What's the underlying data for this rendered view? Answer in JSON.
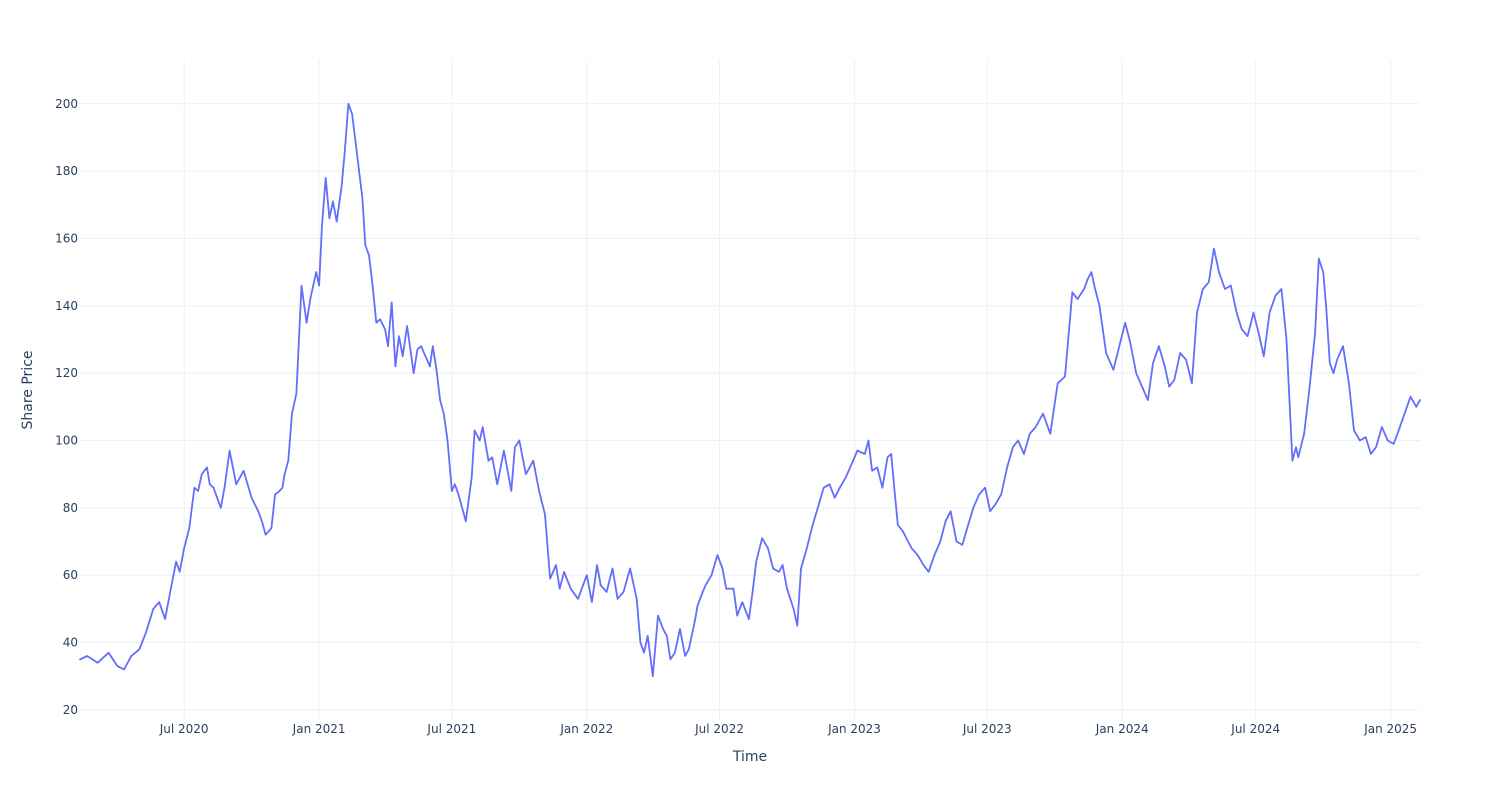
{
  "chart_data": {
    "type": "line",
    "title": "",
    "xlabel": "Time",
    "ylabel": "Share Price",
    "x_axis_type": "date",
    "xlim": [
      "2020-02-10",
      "2025-02-10"
    ],
    "ylim": [
      17,
      213
    ],
    "grid": true,
    "legend": "none",
    "line_color": "#636efa",
    "x_ticks": [
      {
        "date": "2020-07-01",
        "label": "Jul 2020"
      },
      {
        "date": "2021-01-01",
        "label": "Jan 2021"
      },
      {
        "date": "2021-07-01",
        "label": "Jul 2021"
      },
      {
        "date": "2022-01-01",
        "label": "Jan 2022"
      },
      {
        "date": "2022-07-01",
        "label": "Jul 2022"
      },
      {
        "date": "2023-01-01",
        "label": "Jan 2023"
      },
      {
        "date": "2023-07-01",
        "label": "Jul 2023"
      },
      {
        "date": "2024-01-01",
        "label": "Jan 2024"
      },
      {
        "date": "2024-07-01",
        "label": "Jul 2024"
      },
      {
        "date": "2025-01-01",
        "label": "Jan 2025"
      }
    ],
    "y_ticks": [
      20,
      40,
      60,
      80,
      100,
      120,
      140,
      160,
      180,
      200
    ],
    "series": [
      {
        "x": [
          "2020-02-10",
          "2020-02-20",
          "2020-03-05",
          "2020-03-20",
          "2020-04-01",
          "2020-04-10",
          "2020-04-20",
          "2020-05-01",
          "2020-05-10",
          "2020-05-20",
          "2020-05-28",
          "2020-06-05",
          "2020-06-12",
          "2020-06-20",
          "2020-06-25",
          "2020-07-01",
          "2020-07-08",
          "2020-07-15",
          "2020-07-20",
          "2020-07-25",
          "2020-08-01",
          "2020-08-05",
          "2020-08-10",
          "2020-08-20",
          "2020-08-25",
          "2020-09-01",
          "2020-09-10",
          "2020-09-20",
          "2020-10-01",
          "2020-10-10",
          "2020-10-15",
          "2020-10-20",
          "2020-10-28",
          "2020-11-02",
          "2020-11-08",
          "2020-11-12",
          "2020-11-15",
          "2020-11-20",
          "2020-11-25",
          "2020-12-01",
          "2020-12-08",
          "2020-12-15",
          "2020-12-20",
          "2020-12-28",
          "2021-01-01",
          "2021-01-05",
          "2021-01-10",
          "2021-01-15",
          "2021-01-20",
          "2021-01-25",
          "2021-02-01",
          "2021-02-05",
          "2021-02-10",
          "2021-02-15",
          "2021-02-20",
          "2021-03-01",
          "2021-03-05",
          "2021-03-10",
          "2021-03-15",
          "2021-03-20",
          "2021-03-25",
          "2021-04-01",
          "2021-04-05",
          "2021-04-10",
          "2021-04-15",
          "2021-04-20",
          "2021-04-25",
          "2021-05-01",
          "2021-05-10",
          "2021-05-15",
          "2021-05-20",
          "2021-06-01",
          "2021-06-05",
          "2021-06-10",
          "2021-06-15",
          "2021-06-20",
          "2021-06-25",
          "2021-07-01",
          "2021-07-05",
          "2021-07-10",
          "2021-07-20",
          "2021-07-28",
          "2021-08-01",
          "2021-08-08",
          "2021-08-12",
          "2021-08-20",
          "2021-08-25",
          "2021-09-01",
          "2021-09-10",
          "2021-09-20",
          "2021-09-25",
          "2021-10-01",
          "2021-10-10",
          "2021-10-20",
          "2021-10-28",
          "2021-11-05",
          "2021-11-12",
          "2021-11-20",
          "2021-11-25",
          "2021-12-01",
          "2021-12-10",
          "2021-12-20",
          "2022-01-01",
          "2022-01-08",
          "2022-01-15",
          "2022-01-20",
          "2022-01-28",
          "2022-02-05",
          "2022-02-12",
          "2022-02-20",
          "2022-03-01",
          "2022-03-10",
          "2022-03-15",
          "2022-03-20",
          "2022-03-25",
          "2022-04-01",
          "2022-04-08",
          "2022-04-15",
          "2022-04-20",
          "2022-04-25",
          "2022-05-01",
          "2022-05-08",
          "2022-05-15",
          "2022-05-20",
          "2022-05-28",
          "2022-06-01",
          "2022-06-08",
          "2022-06-12",
          "2022-06-20",
          "2022-06-28",
          "2022-07-05",
          "2022-07-10",
          "2022-07-20",
          "2022-07-25",
          "2022-08-01",
          "2022-08-10",
          "2022-08-15",
          "2022-08-20",
          "2022-08-28",
          "2022-09-05",
          "2022-09-12",
          "2022-09-20",
          "2022-09-25",
          "2022-10-01",
          "2022-10-10",
          "2022-10-15",
          "2022-10-20",
          "2022-10-28",
          "2022-11-05",
          "2022-11-12",
          "2022-11-20",
          "2022-11-28",
          "2022-12-05",
          "2022-12-12",
          "2022-12-20",
          "2022-12-28",
          "2023-01-05",
          "2023-01-15",
          "2023-01-20",
          "2023-01-25",
          "2023-02-01",
          "2023-02-08",
          "2023-02-15",
          "2023-02-20",
          "2023-02-25",
          "2023-03-01",
          "2023-03-08",
          "2023-03-15",
          "2023-03-20",
          "2023-03-28",
          "2023-04-05",
          "2023-04-12",
          "2023-04-20",
          "2023-04-28",
          "2023-05-05",
          "2023-05-12",
          "2023-05-20",
          "2023-05-28",
          "2023-06-05",
          "2023-06-12",
          "2023-06-20",
          "2023-06-28",
          "2023-07-05",
          "2023-07-12",
          "2023-07-20",
          "2023-07-28",
          "2023-08-05",
          "2023-08-12",
          "2023-08-20",
          "2023-08-28",
          "2023-09-05",
          "2023-09-15",
          "2023-09-25",
          "2023-10-05",
          "2023-10-15",
          "2023-10-25",
          "2023-11-01",
          "2023-11-10",
          "2023-11-15",
          "2023-11-20",
          "2023-11-25",
          "2023-12-01",
          "2023-12-10",
          "2023-12-20",
          "2023-12-28",
          "2024-01-05",
          "2024-01-12",
          "2024-01-20",
          "2024-01-28",
          "2024-02-05",
          "2024-02-12",
          "2024-02-20",
          "2024-02-28",
          "2024-03-05",
          "2024-03-12",
          "2024-03-20",
          "2024-03-28",
          "2024-04-05",
          "2024-04-12",
          "2024-04-20",
          "2024-04-28",
          "2024-05-05",
          "2024-05-12",
          "2024-05-20",
          "2024-05-28",
          "2024-06-05",
          "2024-06-12",
          "2024-06-20",
          "2024-06-28",
          "2024-07-05",
          "2024-07-12",
          "2024-07-20",
          "2024-07-28",
          "2024-08-05",
          "2024-08-12",
          "2024-08-20",
          "2024-08-25",
          "2024-08-28",
          "2024-09-05",
          "2024-09-12",
          "2024-09-20",
          "2024-09-25",
          "2024-10-01",
          "2024-10-05",
          "2024-10-10",
          "2024-10-15",
          "2024-10-20",
          "2024-10-28",
          "2024-11-05",
          "2024-11-12",
          "2024-11-20",
          "2024-11-28",
          "2024-12-05",
          "2024-12-12",
          "2024-12-20",
          "2024-12-28",
          "2025-01-05",
          "2025-01-12",
          "2025-01-20",
          "2025-01-28",
          "2025-02-05",
          "2025-02-10"
        ],
        "values": [
          35,
          36,
          34,
          37,
          33,
          32,
          36,
          38,
          43,
          50,
          52,
          47,
          55,
          64,
          61,
          68,
          74,
          86,
          85,
          90,
          92,
          87,
          86,
          80,
          86,
          97,
          87,
          91,
          83,
          79,
          76,
          72,
          74,
          84,
          85,
          86,
          90,
          94,
          108,
          114,
          146,
          135,
          142,
          150,
          146,
          164,
          178,
          166,
          171,
          165,
          176,
          186,
          200,
          197,
          188,
          172,
          158,
          155,
          146,
          135,
          136,
          133,
          128,
          141,
          122,
          131,
          125,
          134,
          120,
          127,
          128,
          122,
          128,
          121,
          112,
          108,
          100,
          85,
          87,
          84,
          76,
          89,
          103,
          100,
          104,
          94,
          95,
          87,
          97,
          85,
          98,
          100,
          90,
          94,
          85,
          78,
          59,
          63,
          56,
          61,
          56,
          53,
          60,
          52,
          63,
          57,
          55,
          62,
          53,
          55,
          62,
          53,
          40,
          37,
          42,
          30,
          48,
          44,
          42,
          35,
          37,
          44,
          36,
          38,
          46,
          51,
          55,
          57,
          60,
          66,
          62,
          56,
          56,
          48,
          52,
          47,
          55,
          64,
          71,
          68,
          62,
          61,
          63,
          56,
          50,
          45,
          62,
          68,
          75,
          80,
          86,
          87,
          83,
          86,
          89,
          93,
          97,
          96,
          100,
          91,
          92,
          86,
          95,
          96,
          84,
          75,
          73,
          70,
          68,
          66,
          63,
          61,
          66,
          70,
          76,
          79,
          70,
          69,
          75,
          80,
          84,
          86,
          79,
          81,
          84,
          92,
          98,
          100,
          96,
          102,
          104,
          108,
          102,
          117,
          119,
          144,
          142,
          145,
          148,
          150,
          145,
          140,
          126,
          121,
          128,
          135,
          129,
          120,
          116,
          112,
          123,
          128,
          122,
          116,
          118,
          126,
          124,
          117,
          138,
          145,
          147,
          157,
          150,
          145,
          146,
          138,
          133,
          131,
          138,
          132,
          125,
          138,
          143,
          145,
          130,
          94,
          98,
          95,
          102,
          115,
          132,
          154,
          150,
          140,
          123,
          120,
          124,
          128,
          117,
          103,
          100,
          101,
          96,
          98,
          104,
          100,
          99,
          103,
          108,
          113,
          110,
          112
        ]
      }
    ]
  }
}
